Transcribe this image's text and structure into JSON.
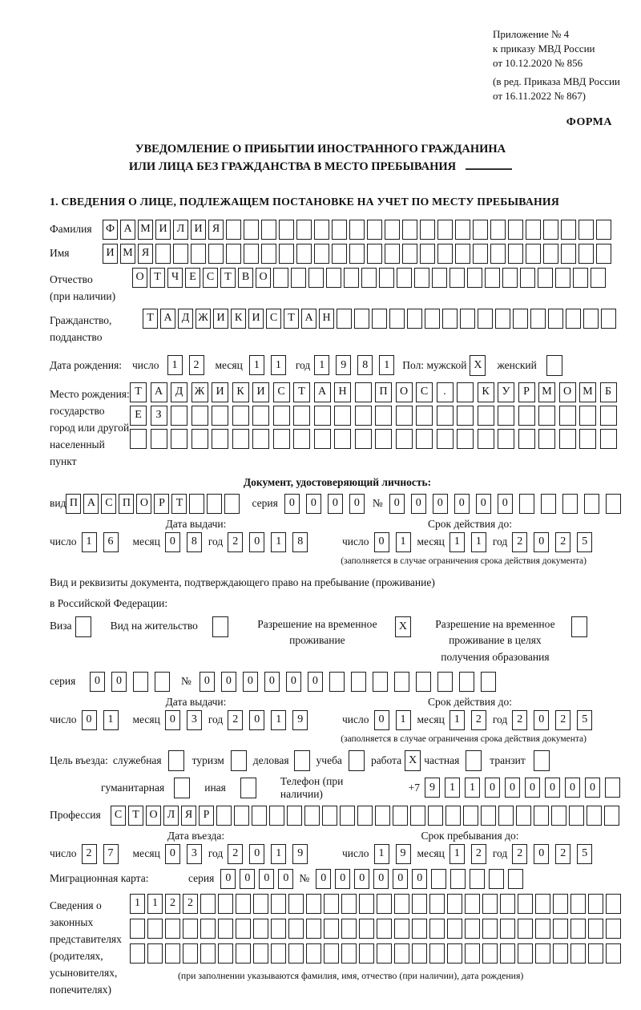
{
  "header": {
    "appendix_lines": [
      "Приложение № 4",
      "к приказу МВД России",
      "от 10.12.2020 № 856"
    ],
    "amendment_lines": [
      "(в ред. Приказа МВД России",
      "от 16.11.2022 № 867)"
    ],
    "form_label": "ФОРМА"
  },
  "title": {
    "line1": "УВЕДОМЛЕНИЕ О ПРИБЫТИИ ИНОСТРАННОГО ГРАЖДАНИНА",
    "line2": "ИЛИ ЛИЦА БЕЗ ГРАЖДАНСТВА В МЕСТО ПРЕБЫВАНИЯ"
  },
  "section1_heading": "1. СВЕДЕНИЯ О ЛИЦЕ, ПОДЛЕЖАЩЕМ ПОСТАНОВКЕ НА УЧЕТ ПО МЕСТУ ПРЕБЫВАНИЯ",
  "labels": {
    "surname": "Фамилия",
    "name": "Имя",
    "patronymic_line1": "Отчество",
    "patronymic_line2": "(при наличии)",
    "citizenship_line1": "Гражданство,",
    "citizenship_line2": "подданство",
    "birth_date": "Дата рождения:",
    "day": "число",
    "month": "месяц",
    "year": "год",
    "sex": "Пол:",
    "male": "мужской",
    "female": "женский",
    "birthplace_line1": "Место рождения:",
    "birthplace_line2": "государство",
    "birthplace_line3": "город или другой",
    "birthplace_line4": "населенный пункт",
    "identity_doc_heading": "Документ, удостоверяющий личность:",
    "doc_type": "вид",
    "series": "серия",
    "number_sign": "№",
    "issue_date": "Дата выдачи:",
    "valid_until": "Срок действия до:",
    "validity_note": "(заполняется в случае ограничения срока действия документа)",
    "residence_doc_line1": "Вид и реквизиты документа, подтверждающего право на пребывание (проживание)",
    "residence_doc_line2": "в Российской Федерации:",
    "visa": "Виза",
    "residence_permit": "Вид на жительство",
    "temp_residence_line1": "Разрешение на временное",
    "temp_residence_line2": "проживание",
    "temp_residence_edu_line1": "Разрешение на временное",
    "temp_residence_edu_line2": "проживание в целях",
    "temp_residence_edu_line3": "получения образования",
    "entry_purpose": "Цель въезда:",
    "purpose_official": "служебная",
    "purpose_tourism": "туризм",
    "purpose_business": "деловая",
    "purpose_study": "учеба",
    "purpose_work": "работа",
    "purpose_private": "частная",
    "purpose_transit": "транзит",
    "purpose_humanitarian": "гуманитарная",
    "purpose_other": "иная",
    "phone": "Телефон (при наличии)",
    "phone_prefix": "+7",
    "profession": "Профессия",
    "entry_date": "Дата въезда:",
    "stay_until": "Срок пребывания до:",
    "migration_card": "Миграционная карта:",
    "legal_line1": "Сведения о",
    "legal_line2": "законных",
    "legal_line3": "представителях",
    "legal_line4": "(родителях,",
    "legal_line5": "усыновителях,",
    "legal_line6": "попечителях)",
    "legal_note": "(при заполнении указываются фамилия, имя, отчество (при наличии), дата рождения)"
  },
  "boxes": {
    "surname": {
      "count": 29,
      "value": "ФАМИЛИЯ"
    },
    "name": {
      "count": 29,
      "value": "ИМЯ"
    },
    "patronymic": {
      "count": 27,
      "value": "ОТЧЕСТВО"
    },
    "citizenship": {
      "count": 27,
      "value": "ТАДЖИКИСТАН"
    },
    "birth_day": {
      "count": 2,
      "value": "12"
    },
    "birth_month": {
      "count": 2,
      "value": "11"
    },
    "birth_year": {
      "count": 4,
      "value": "1981"
    },
    "birthplace_row1": {
      "count": 24,
      "value": "ТАДЖИКИСТАН ПОС. КУРМОМБ"
    },
    "birthplace_row2": {
      "count": 24,
      "value": "ЕЗ"
    },
    "birthplace_row3": {
      "count": 24,
      "value": ""
    },
    "doc_type": {
      "count": 10,
      "value": "ПАСПОРТ"
    },
    "doc_series": {
      "count": 4,
      "value": "0000"
    },
    "doc_number": {
      "count": 11,
      "value": "000000"
    },
    "doc_issue_day": {
      "count": 2,
      "value": "16"
    },
    "doc_issue_month": {
      "count": 2,
      "value": "08"
    },
    "doc_issue_year": {
      "count": 4,
      "value": "2018"
    },
    "doc_valid_day": {
      "count": 2,
      "value": "01"
    },
    "doc_valid_month": {
      "count": 2,
      "value": "11"
    },
    "doc_valid_year": {
      "count": 4,
      "value": "2025"
    },
    "permit_series": {
      "count": 4,
      "value": "00"
    },
    "permit_number": {
      "count": 14,
      "value": "000000"
    },
    "permit_issue_day": {
      "count": 2,
      "value": "01"
    },
    "permit_issue_month": {
      "count": 2,
      "value": "03"
    },
    "permit_issue_year": {
      "count": 4,
      "value": "2019"
    },
    "permit_valid_day": {
      "count": 2,
      "value": "01"
    },
    "permit_valid_month": {
      "count": 2,
      "value": "12"
    },
    "permit_valid_year": {
      "count": 4,
      "value": "2025"
    },
    "phone": {
      "count": 10,
      "value": "911000000"
    },
    "profession": {
      "count": 29,
      "value": "СТОЛЯР"
    },
    "entry_day": {
      "count": 2,
      "value": "27"
    },
    "entry_month": {
      "count": 2,
      "value": "03"
    },
    "entry_year": {
      "count": 4,
      "value": "2019"
    },
    "stay_day": {
      "count": 2,
      "value": "19"
    },
    "stay_month": {
      "count": 2,
      "value": "12"
    },
    "stay_year": {
      "count": 4,
      "value": "2025"
    },
    "migration_series": {
      "count": 4,
      "value": "0000"
    },
    "migration_number": {
      "count": 11,
      "value": "000000"
    },
    "legal_row1": {
      "count": 28,
      "value": "1122"
    },
    "legal_row2": {
      "count": 28,
      "value": ""
    },
    "legal_row3": {
      "count": 28,
      "value": ""
    }
  },
  "checkboxes": {
    "male": "X",
    "female": "",
    "visa": "",
    "residence_permit": "",
    "temp_residence": "X",
    "temp_residence_edu": "",
    "purpose_official": "",
    "purpose_tourism": "",
    "purpose_business": "",
    "purpose_study": "",
    "purpose_work": "X",
    "purpose_private": "",
    "purpose_transit": "",
    "purpose_humanitarian": "",
    "purpose_other": ""
  }
}
